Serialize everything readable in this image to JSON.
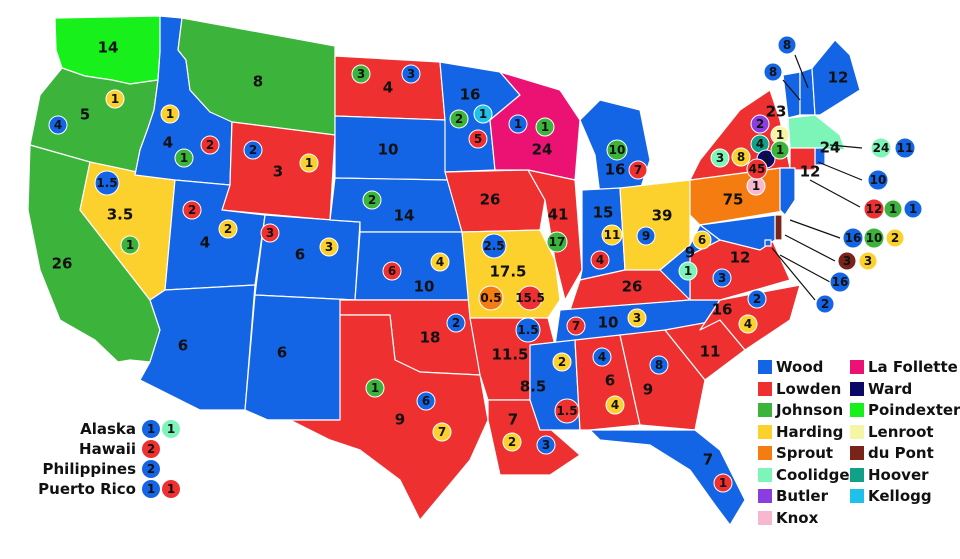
{
  "colors": {
    "Wood": "#1464e6",
    "Lowden": "#ee3030",
    "Johnson": "#3cb43c",
    "Harding": "#fcd12e",
    "Sprout": "#f57c10",
    "Coolidge": "#7ef5b8",
    "Butler": "#8a3ee0",
    "Knox": "#f7b8cf",
    "La Follette": "#ec1273",
    "Ward": "#0a0a66",
    "Poindexter": "#17f01a",
    "Lenroot": "#f5f5a6",
    "du Pont": "#7a2318",
    "Hoover": "#11a088",
    "Kellogg": "#1ec0ec"
  },
  "legend": [
    "Wood",
    "Lowden",
    "Johnson",
    "Harding",
    "Sprout",
    "Coolidge",
    "Butler",
    "Knox",
    "La Follette",
    "Ward",
    "Poindexter",
    "Lenroot",
    "du Pont",
    "Hoover",
    "Kellogg"
  ],
  "states": [
    {
      "id": "WA",
      "fill": "Poindexter",
      "label": "14"
    },
    {
      "id": "OR",
      "fill": "Johnson",
      "label": "5"
    },
    {
      "id": "CA",
      "fill": "Johnson",
      "label": "26"
    },
    {
      "id": "NV",
      "fill": "Harding",
      "label": "3.5"
    },
    {
      "id": "ID",
      "fill": "Wood",
      "label": "4"
    },
    {
      "id": "MT",
      "fill": "Johnson",
      "label": "8"
    },
    {
      "id": "WY",
      "fill": "Lowden",
      "label": "3"
    },
    {
      "id": "UT",
      "fill": "Wood",
      "label": "4"
    },
    {
      "id": "AZ",
      "fill": "Wood",
      "label": "6"
    },
    {
      "id": "CO",
      "fill": "Wood",
      "label": "6"
    },
    {
      "id": "NM",
      "fill": "Wood",
      "label": "6"
    },
    {
      "id": "ND",
      "fill": "Lowden",
      "label": "4"
    },
    {
      "id": "SD",
      "fill": "Wood",
      "label": "10"
    },
    {
      "id": "NE",
      "fill": "Wood",
      "label": "14"
    },
    {
      "id": "KS",
      "fill": "Wood",
      "label": "10"
    },
    {
      "id": "OK",
      "fill": "Lowden",
      "label": "18"
    },
    {
      "id": "TX",
      "fill": "Lowden",
      "label": "9"
    },
    {
      "id": "MN",
      "fill": "Wood",
      "label": "16"
    },
    {
      "id": "IA",
      "fill": "Lowden",
      "label": "26"
    },
    {
      "id": "MO",
      "fill": "Harding",
      "label": "17.5"
    },
    {
      "id": "AR",
      "fill": "Lowden",
      "label": "11.5"
    },
    {
      "id": "LA",
      "fill": "Lowden",
      "label": "7"
    },
    {
      "id": "WI",
      "fill": "La Follette",
      "label": "24"
    },
    {
      "id": "IL",
      "fill": "Lowden",
      "label": "41"
    },
    {
      "id": "MI",
      "fill": "Wood",
      "label": "16"
    },
    {
      "id": "IN",
      "fill": "Wood",
      "label": "15"
    },
    {
      "id": "OH",
      "fill": "Harding",
      "label": "39"
    },
    {
      "id": "KY",
      "fill": "Lowden",
      "label": "26"
    },
    {
      "id": "TN",
      "fill": "Wood",
      "label": "10"
    },
    {
      "id": "MS",
      "fill": "Wood",
      "label": "8.5"
    },
    {
      "id": "AL",
      "fill": "Lowden",
      "label": "6"
    },
    {
      "id": "GA",
      "fill": "Lowden",
      "label": "9"
    },
    {
      "id": "FL",
      "fill": "Wood",
      "label": "7"
    },
    {
      "id": "SC",
      "fill": "Lowden",
      "label": "11"
    },
    {
      "id": "NC",
      "fill": "Lowden",
      "label": "16"
    },
    {
      "id": "VA",
      "fill": "Lowden",
      "label": "12"
    },
    {
      "id": "WV",
      "fill": "Wood",
      "label": "9"
    },
    {
      "id": "PA",
      "fill": "Sprout",
      "label": "75"
    },
    {
      "id": "NY",
      "fill": "Lowden",
      "label": "23"
    },
    {
      "id": "VT",
      "fill": "Wood",
      "label": "8"
    },
    {
      "id": "NH",
      "fill": "Wood",
      "label": "8"
    },
    {
      "id": "ME",
      "fill": "Wood",
      "label": "12"
    },
    {
      "id": "MA",
      "fill": "Coolidge",
      "label": "24"
    },
    {
      "id": "RI",
      "fill": "Wood",
      "label": "10"
    },
    {
      "id": "CT",
      "fill": "Lowden",
      "label": "12"
    },
    {
      "id": "NJ",
      "fill": "Wood",
      "label": "16"
    },
    {
      "id": "DE",
      "fill": "du Pont",
      "label": "3"
    },
    {
      "id": "MD",
      "fill": "Wood",
      "label": "16"
    },
    {
      "id": "DC",
      "fill": "Wood",
      "label": "2"
    }
  ],
  "dots": [
    {
      "c": "Harding",
      "v": "1"
    },
    {
      "c": "Wood",
      "v": "4"
    },
    {
      "c": "Wood",
      "v": "1.5"
    },
    {
      "c": "Johnson",
      "v": "1"
    },
    {
      "c": "Harding",
      "v": "1"
    },
    {
      "c": "Lowden",
      "v": "2"
    },
    {
      "c": "Johnson",
      "v": "1"
    },
    {
      "c": "Wood",
      "v": "2"
    },
    {
      "c": "Harding",
      "v": "1"
    },
    {
      "c": "Lowden",
      "v": "2"
    },
    {
      "c": "Harding",
      "v": "2"
    },
    {
      "c": "Lowden",
      "v": "3"
    },
    {
      "c": "Harding",
      "v": "3"
    },
    {
      "c": "Johnson",
      "v": "3"
    },
    {
      "c": "Wood",
      "v": "3"
    },
    {
      "c": "Johnson",
      "v": "2"
    },
    {
      "c": "Lowden",
      "v": "6"
    },
    {
      "c": "Harding",
      "v": "4"
    },
    {
      "c": "Wood",
      "v": "2"
    },
    {
      "c": "Johnson",
      "v": "1"
    },
    {
      "c": "Wood",
      "v": "6"
    },
    {
      "c": "Harding",
      "v": "7"
    },
    {
      "c": "Johnson",
      "v": "2"
    },
    {
      "c": "Kellogg",
      "v": "1"
    },
    {
      "c": "Lowden",
      "v": "5"
    },
    {
      "c": "Wood",
      "v": "1"
    },
    {
      "c": "Johnson",
      "v": "1"
    },
    {
      "c": "Wood",
      "v": "2.5"
    },
    {
      "c": "Sprout",
      "v": "0.5"
    },
    {
      "c": "Lowden",
      "v": "15.5"
    },
    {
      "c": "Johnson",
      "v": "17"
    },
    {
      "c": "Johnson",
      "v": "10"
    },
    {
      "c": "Lowden",
      "v": "7"
    },
    {
      "c": "Harding",
      "v": "11"
    },
    {
      "c": "Lowden",
      "v": "4"
    },
    {
      "c": "Wood",
      "v": "9"
    },
    {
      "c": "Harding",
      "v": "6"
    },
    {
      "c": "Coolidge",
      "v": "1"
    },
    {
      "c": "Wood",
      "v": "3"
    },
    {
      "c": "Wood",
      "v": "1.5"
    },
    {
      "c": "Lowden",
      "v": "7"
    },
    {
      "c": "Harding",
      "v": "3"
    },
    {
      "c": "Harding",
      "v": "2"
    },
    {
      "c": "Wood",
      "v": "3"
    },
    {
      "c": "Harding",
      "v": "2"
    },
    {
      "c": "Lowden",
      "v": "1.5"
    },
    {
      "c": "Wood",
      "v": "4"
    },
    {
      "c": "Harding",
      "v": "4"
    },
    {
      "c": "Wood",
      "v": "8"
    },
    {
      "c": "Wood",
      "v": "2"
    },
    {
      "c": "Harding",
      "v": "4"
    },
    {
      "c": "Lowden",
      "v": "1"
    },
    {
      "c": "Knox",
      "v": "1"
    },
    {
      "c": "Butler",
      "v": "2"
    },
    {
      "c": "Hoover",
      "v": "4"
    },
    {
      "c": "Lenroot",
      "v": "1"
    },
    {
      "c": "Ward",
      "v": "1"
    },
    {
      "c": "Johnson",
      "v": "1"
    },
    {
      "c": "Coolidge",
      "v": "3"
    },
    {
      "c": "Harding",
      "v": "8"
    },
    {
      "c": "Lowden",
      "v": "45"
    },
    {
      "c": "Coolidge",
      "v": "24"
    },
    {
      "c": "Wood",
      "v": "11"
    },
    {
      "c": "Wood",
      "v": "10"
    },
    {
      "c": "Lowden",
      "v": "12"
    },
    {
      "c": "Johnson",
      "v": "1"
    },
    {
      "c": "Wood",
      "v": "1"
    },
    {
      "c": "Wood",
      "v": "16"
    },
    {
      "c": "Johnson",
      "v": "10"
    },
    {
      "c": "Harding",
      "v": "2"
    },
    {
      "c": "du Pont",
      "v": "3"
    },
    {
      "c": "Harding",
      "v": "3"
    },
    {
      "c": "Wood",
      "v": "16"
    },
    {
      "c": "Wood",
      "v": "2"
    },
    {
      "c": "Wood",
      "v": "8"
    },
    {
      "c": "Wood",
      "v": "8"
    }
  ],
  "territories": [
    {
      "name": "Alaska",
      "dots": [
        {
          "c": "Wood",
          "v": "1"
        },
        {
          "c": "Coolidge",
          "v": "1"
        }
      ]
    },
    {
      "name": "Hawaii",
      "dots": [
        {
          "c": "Lowden",
          "v": "2"
        }
      ]
    },
    {
      "name": "Philippines",
      "dots": [
        {
          "c": "Wood",
          "v": "2"
        }
      ]
    },
    {
      "name": "Puerto Rico",
      "dots": [
        {
          "c": "Wood",
          "v": "1"
        },
        {
          "c": "Lowden",
          "v": "1"
        }
      ]
    }
  ]
}
